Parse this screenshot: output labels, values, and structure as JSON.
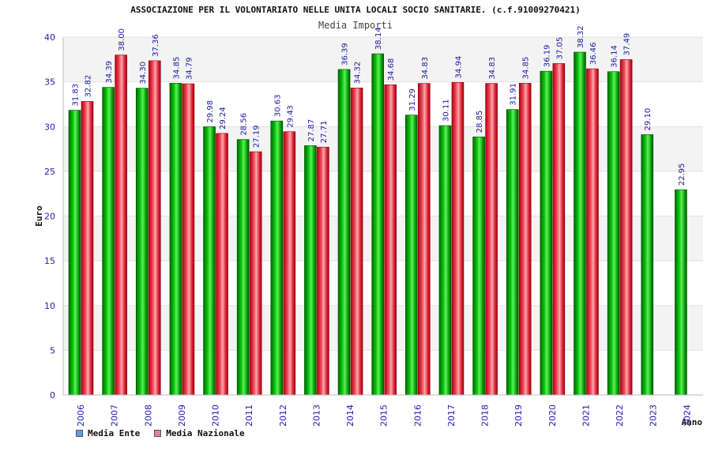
{
  "chart_data": {
    "type": "bar",
    "title": "ASSOCIAZIONE PER IL VOLONTARIATO NELLE UNITA LOCALI SOCIO SANITARIE. (c.f.91009270421)",
    "subtitle": "Media Importi",
    "xlabel": "Anno",
    "ylabel": "Euro",
    "ylim": [
      0,
      40
    ],
    "yticks": [
      "0",
      "5",
      "10",
      "15",
      "20",
      "25",
      "30",
      "35",
      "40"
    ],
    "grid": true,
    "legend_position": "bottom-left",
    "categories": [
      "2006",
      "2007",
      "2008",
      "2009",
      "2010",
      "2011",
      "2012",
      "2013",
      "2014",
      "2015",
      "2016",
      "2017",
      "2018",
      "2019",
      "2020",
      "2021",
      "2022",
      "2023",
      "2024"
    ],
    "series": [
      {
        "name": "Media Ente",
        "color": "#00b000",
        "legend_color": "#5aa0e6",
        "values": [
          31.83,
          34.39,
          34.3,
          34.85,
          29.98,
          28.56,
          30.63,
          27.87,
          36.39,
          38.14,
          31.29,
          30.11,
          28.85,
          31.91,
          36.19,
          38.32,
          36.14,
          29.1,
          22.95
        ],
        "labels": [
          "31.83",
          "34.39",
          "34.30",
          "34.85",
          "29.98",
          "28.56",
          "30.63",
          "27.87",
          "36.39",
          "38.14",
          "31.29",
          "30.11",
          "28.85",
          "31.91",
          "36.19",
          "38.32",
          "36.14",
          "29.10",
          "22.95"
        ]
      },
      {
        "name": "Media Nazionale",
        "color": "#e02030",
        "legend_color": "#e67aa8",
        "values": [
          32.82,
          38.0,
          37.36,
          34.79,
          29.24,
          27.19,
          29.43,
          27.71,
          34.32,
          34.68,
          34.83,
          34.94,
          34.83,
          34.85,
          37.05,
          36.46,
          37.49,
          null,
          null
        ],
        "labels": [
          "32.82",
          "38.00",
          "37.36",
          "34.79",
          "29.24",
          "27.19",
          "29.43",
          "27.71",
          "34.32",
          "34.68",
          "34.83",
          "34.94",
          "34.83",
          "34.85",
          "37.05",
          "36.46",
          "37.49",
          null,
          null
        ]
      }
    ]
  }
}
